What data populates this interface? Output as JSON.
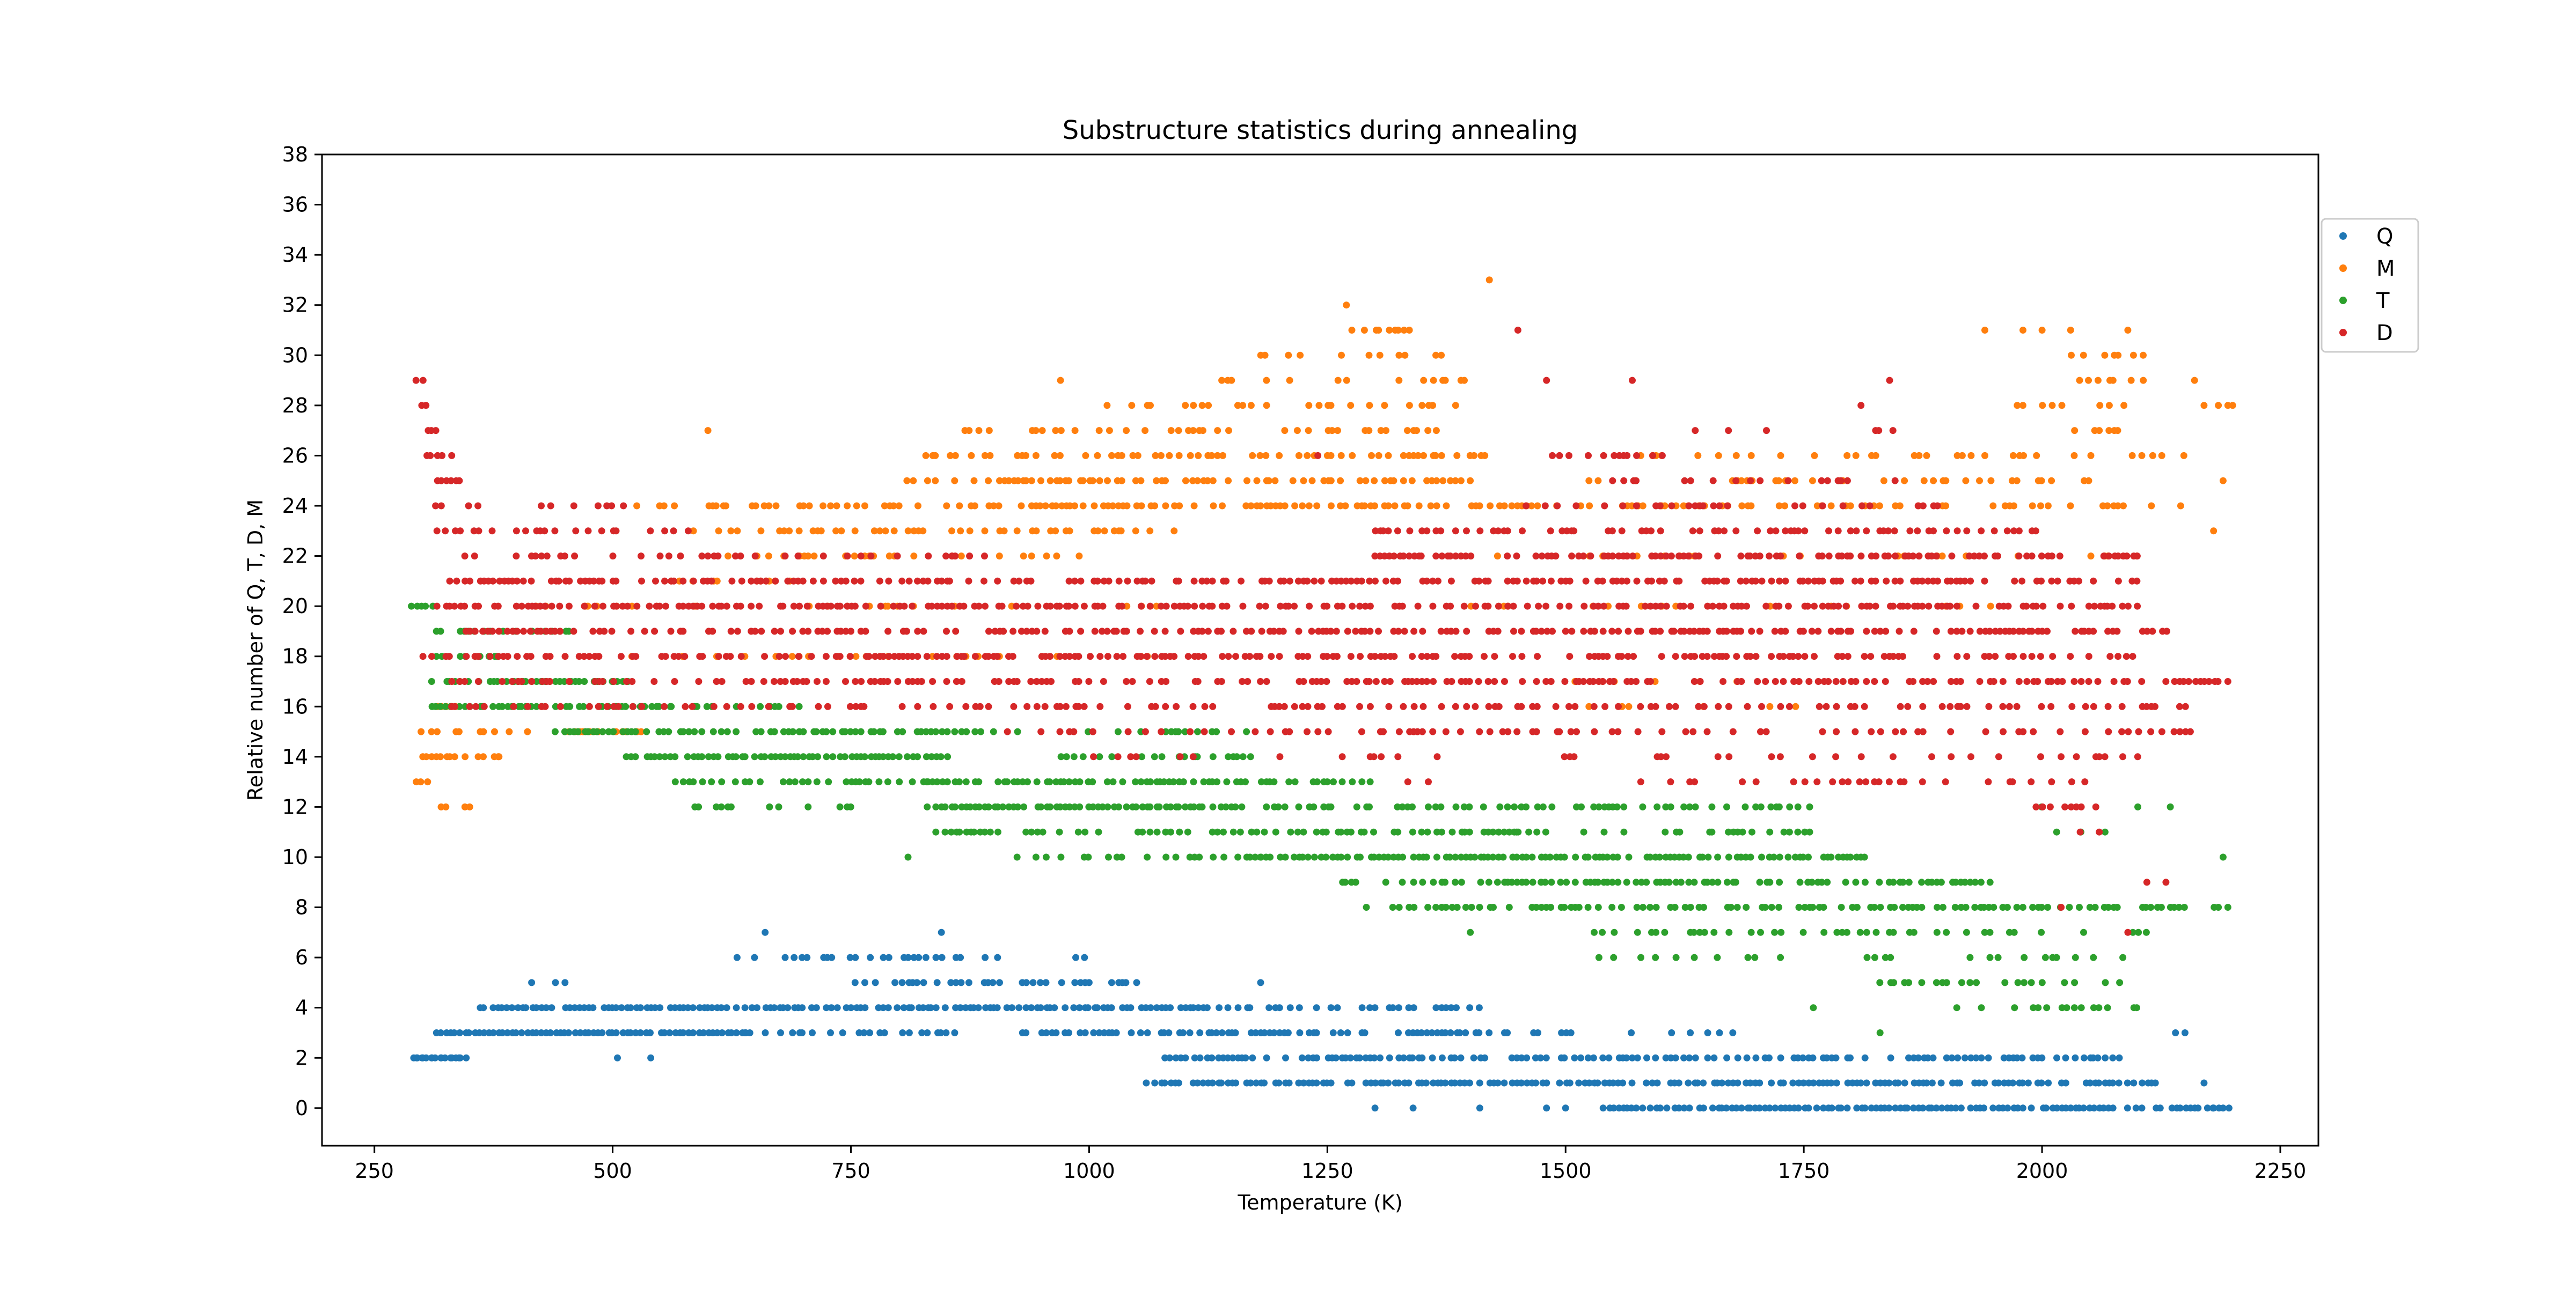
{
  "chart_data": {
    "type": "scatter",
    "title": "Substructure statistics during annealing",
    "xlabel": "Temperature (K)",
    "ylabel": "Relative number of Q, T, D, M",
    "xlim": [
      195,
      2290
    ],
    "ylim": [
      -1.5,
      38
    ],
    "xticks": [
      250,
      500,
      750,
      1000,
      1250,
      1500,
      1750,
      2000,
      2250
    ],
    "yticks": [
      0,
      2,
      4,
      6,
      8,
      10,
      12,
      14,
      16,
      18,
      20,
      22,
      24,
      26,
      28,
      30,
      32,
      34,
      36,
      38
    ],
    "legend_position": "outside-top-right",
    "series": [
      {
        "name": "Q",
        "color": "#1f77b4",
        "bands": [
          {
            "y": 0,
            "x": [
              1540,
              2195
            ],
            "density": 0.85
          },
          {
            "y": 1,
            "x": [
              1070,
              2120
            ],
            "density": 0.8
          },
          {
            "y": 2,
            "x": [
              290,
              345
            ],
            "density": 0.95
          },
          {
            "y": 2,
            "x": [
              1070,
              2080
            ],
            "density": 0.65
          },
          {
            "y": 3,
            "x": [
              315,
              640
            ],
            "density": 0.95
          },
          {
            "y": 3,
            "x": [
              640,
              860
            ],
            "density": 0.5
          },
          {
            "y": 3,
            "x": [
              930,
              1400
            ],
            "density": 0.7
          },
          {
            "y": 3,
            "x": [
              1400,
              1680
            ],
            "density": 0.35
          },
          {
            "y": 4,
            "x": [
              360,
              1120
            ],
            "density": 0.85
          },
          {
            "y": 4,
            "x": [
              1120,
              1420
            ],
            "density": 0.4
          },
          {
            "y": 5,
            "x": [
              750,
              1050
            ],
            "density": 0.6
          },
          {
            "y": 6,
            "x": [
              630,
              1010
            ],
            "density": 0.35
          }
        ],
        "points": [
          [
            295,
            2
          ],
          [
            300,
            2
          ],
          [
            310,
            2
          ],
          [
            320,
            2
          ],
          [
            330,
            2
          ],
          [
            340,
            2
          ],
          [
            415,
            5
          ],
          [
            440,
            5
          ],
          [
            450,
            5
          ],
          [
            505,
            2
          ],
          [
            540,
            2
          ],
          [
            660,
            7
          ],
          [
            845,
            7
          ],
          [
            1180,
            5
          ],
          [
            1060,
            1
          ],
          [
            1300,
            0
          ],
          [
            1340,
            0
          ],
          [
            1410,
            0
          ],
          [
            1480,
            0
          ],
          [
            1500,
            0
          ],
          [
            2140,
            3
          ],
          [
            2150,
            3
          ],
          [
            2170,
            1
          ],
          [
            2180,
            0
          ],
          [
            2190,
            0
          ]
        ]
      },
      {
        "name": "M",
        "color": "#ff7f0e",
        "bands": [
          {
            "y": 13,
            "x": [
              295,
              305
            ],
            "density": 1
          },
          {
            "y": 14,
            "x": [
              300,
              380
            ],
            "density": 0.5
          },
          {
            "y": 15,
            "x": [
              300,
              540
            ],
            "density": 0.4
          },
          {
            "y": 16,
            "x": [
              315,
              335
            ],
            "density": 0.8
          },
          {
            "y": 18,
            "x": [
              480,
              1060
            ],
            "density": 0.2
          },
          {
            "y": 20,
            "x": [
              420,
              1100
            ],
            "density": 0.15
          },
          {
            "y": 21,
            "x": [
              560,
              700
            ],
            "density": 0.4
          },
          {
            "y": 22,
            "x": [
              560,
              1000
            ],
            "density": 0.3
          },
          {
            "y": 23,
            "x": [
              580,
              1100
            ],
            "density": 0.45
          },
          {
            "y": 24,
            "x": [
              520,
              1480
            ],
            "density": 0.55
          },
          {
            "y": 25,
            "x": [
              800,
              1400
            ],
            "density": 0.55
          },
          {
            "y": 26,
            "x": [
              830,
              1420
            ],
            "density": 0.5
          },
          {
            "y": 27,
            "x": [
              870,
              1400
            ],
            "density": 0.35
          },
          {
            "y": 28,
            "x": [
              1000,
              1450
            ],
            "density": 0.3
          },
          {
            "y": 29,
            "x": [
              1140,
              1400
            ],
            "density": 0.2
          },
          {
            "y": 30,
            "x": [
              1170,
              1400
            ],
            "density": 0.2
          },
          {
            "y": 31,
            "x": [
              1260,
              1340
            ],
            "density": 0.4
          },
          {
            "y": 24,
            "x": [
              1480,
              2170
            ],
            "density": 0.3
          },
          {
            "y": 25,
            "x": [
              1500,
              2080
            ],
            "density": 0.25
          },
          {
            "y": 26,
            "x": [
              1550,
              2150
            ],
            "density": 0.2
          },
          {
            "y": 22,
            "x": [
              1420,
              2100
            ],
            "density": 0.15
          },
          {
            "y": 20,
            "x": [
              1400,
              2000
            ],
            "density": 0.12
          },
          {
            "y": 27,
            "x": [
              2020,
              2080
            ],
            "density": 0.5
          },
          {
            "y": 28,
            "x": [
              1960,
              2090
            ],
            "density": 0.35
          },
          {
            "y": 29,
            "x": [
              2030,
              2120
            ],
            "density": 0.4
          },
          {
            "y": 30,
            "x": [
              2030,
              2110
            ],
            "density": 0.3
          },
          {
            "y": 17,
            "x": [
              1500,
              1700
            ],
            "density": 0.15
          },
          {
            "y": 16,
            "x": [
              1450,
              1750
            ],
            "density": 0.1
          }
        ],
        "points": [
          [
            320,
            12
          ],
          [
            325,
            12
          ],
          [
            345,
            12
          ],
          [
            350,
            12
          ],
          [
            380,
            14
          ],
          [
            600,
            27
          ],
          [
            970,
            29
          ],
          [
            1270,
            32
          ],
          [
            1420,
            33
          ],
          [
            1940,
            31
          ],
          [
            1980,
            31
          ],
          [
            2000,
            31
          ],
          [
            2030,
            31
          ],
          [
            2090,
            31
          ],
          [
            2160,
            29
          ],
          [
            2170,
            28
          ],
          [
            2185,
            28
          ],
          [
            2195,
            28
          ],
          [
            2190,
            25
          ],
          [
            2180,
            23
          ],
          [
            2200,
            28
          ]
        ]
      },
      {
        "name": "T",
        "color": "#2ca02c",
        "bands": [
          {
            "y": 20,
            "x": [
              290,
              310
            ],
            "density": 1
          },
          {
            "y": 19,
            "x": [
              310,
              480
            ],
            "density": 0.4
          },
          {
            "y": 18,
            "x": [
              310,
              390
            ],
            "density": 0.7
          },
          {
            "y": 17,
            "x": [
              310,
              515
            ],
            "density": 0.85
          },
          {
            "y": 16,
            "x": [
              310,
              560
            ],
            "density": 0.7
          },
          {
            "y": 16,
            "x": [
              560,
              700
            ],
            "density": 0.3
          },
          {
            "y": 15,
            "x": [
              440,
              850
            ],
            "density": 0.7
          },
          {
            "y": 15,
            "x": [
              850,
              1170
            ],
            "density": 0.3
          },
          {
            "y": 14,
            "x": [
              515,
              850
            ],
            "density": 0.85
          },
          {
            "y": 14,
            "x": [
              960,
              1170
            ],
            "density": 0.4
          },
          {
            "y": 13,
            "x": [
              560,
              830
            ],
            "density": 0.45
          },
          {
            "y": 13,
            "x": [
              830,
              1300
            ],
            "density": 0.75
          },
          {
            "y": 12,
            "x": [
              570,
              760
            ],
            "density": 0.3
          },
          {
            "y": 12,
            "x": [
              830,
              1150
            ],
            "density": 0.9
          },
          {
            "y": 12,
            "x": [
              1150,
              1760
            ],
            "density": 0.4
          },
          {
            "y": 11,
            "x": [
              840,
              1450
            ],
            "density": 0.55
          },
          {
            "y": 11,
            "x": [
              1450,
              1800
            ],
            "density": 0.35
          },
          {
            "y": 10,
            "x": [
              920,
              1180
            ],
            "density": 0.4
          },
          {
            "y": 10,
            "x": [
              1180,
              1820
            ],
            "density": 0.7
          },
          {
            "y": 9,
            "x": [
              1250,
              1950
            ],
            "density": 0.6
          },
          {
            "y": 8,
            "x": [
              1280,
              2190
            ],
            "density": 0.55
          },
          {
            "y": 7,
            "x": [
              1530,
              2150
            ],
            "density": 0.35
          },
          {
            "y": 6,
            "x": [
              1530,
              2100
            ],
            "density": 0.3
          },
          {
            "y": 5,
            "x": [
              1830,
              2080
            ],
            "density": 0.45
          },
          {
            "y": 4,
            "x": [
              1900,
              2100
            ],
            "density": 0.3
          },
          {
            "y": 12,
            "x": [
              1980,
              2180
            ],
            "density": 0.15
          },
          {
            "y": 11,
            "x": [
              2000,
              2110
            ],
            "density": 0.2
          }
        ],
        "points": [
          [
            810,
            10
          ],
          [
            1400,
            7
          ],
          [
            1760,
            4
          ],
          [
            1830,
            3
          ],
          [
            2190,
            10
          ],
          [
            2195,
            8
          ],
          [
            2185,
            8
          ],
          [
            1530,
            7
          ],
          [
            1535,
            6
          ]
        ]
      },
      {
        "name": "D",
        "color": "#d62728",
        "bands": [
          {
            "y": 29,
            "x": [
              295,
              300
            ],
            "density": 1
          },
          {
            "y": 28,
            "x": [
              300,
              320
            ],
            "density": 0.8
          },
          {
            "y": 27,
            "x": [
              305,
              315
            ],
            "density": 1
          },
          {
            "y": 26,
            "x": [
              305,
              330
            ],
            "density": 0.7
          },
          {
            "y": 25,
            "x": [
              310,
              345
            ],
            "density": 0.8
          },
          {
            "y": 24,
            "x": [
              315,
              520
            ],
            "density": 0.25
          },
          {
            "y": 23,
            "x": [
              310,
              580
            ],
            "density": 0.4
          },
          {
            "y": 22,
            "x": [
              330,
              900
            ],
            "density": 0.35
          },
          {
            "y": 21,
            "x": [
              320,
              2110
            ],
            "density": 0.55
          },
          {
            "y": 20,
            "x": [
              300,
              2100
            ],
            "density": 0.6
          },
          {
            "y": 19,
            "x": [
              340,
              2130
            ],
            "density": 0.6
          },
          {
            "y": 18,
            "x": [
              300,
              2100
            ],
            "density": 0.5
          },
          {
            "y": 17,
            "x": [
              330,
              2195
            ],
            "density": 0.5
          },
          {
            "y": 16,
            "x": [
              330,
              2150
            ],
            "density": 0.35
          },
          {
            "y": 15,
            "x": [
              900,
              2200
            ],
            "density": 0.3
          },
          {
            "y": 14,
            "x": [
              1000,
              2100
            ],
            "density": 0.2
          },
          {
            "y": 13,
            "x": [
              1300,
              2050
            ],
            "density": 0.2
          },
          {
            "y": 12,
            "x": [
              1980,
              2060
            ],
            "density": 0.3
          },
          {
            "y": 22,
            "x": [
              1300,
              2100
            ],
            "density": 0.6
          },
          {
            "y": 23,
            "x": [
              1300,
              2000
            ],
            "density": 0.45
          },
          {
            "y": 24,
            "x": [
              1450,
              1900
            ],
            "density": 0.35
          },
          {
            "y": 25,
            "x": [
              1500,
              1850
            ],
            "density": 0.25
          },
          {
            "y": 26,
            "x": [
              1480,
              1600
            ],
            "density": 0.4
          },
          {
            "y": 27,
            "x": [
              1620,
              1880
            ],
            "density": 0.15
          }
        ],
        "points": [
          [
            1450,
            31
          ],
          [
            1480,
            29
          ],
          [
            1570,
            29
          ],
          [
            1840,
            29
          ],
          [
            1240,
            26
          ],
          [
            1810,
            28
          ],
          [
            2020,
            8
          ],
          [
            2040,
            11
          ],
          [
            2060,
            11
          ],
          [
            2090,
            7
          ],
          [
            2110,
            9
          ],
          [
            2130,
            9
          ]
        ]
      }
    ]
  }
}
